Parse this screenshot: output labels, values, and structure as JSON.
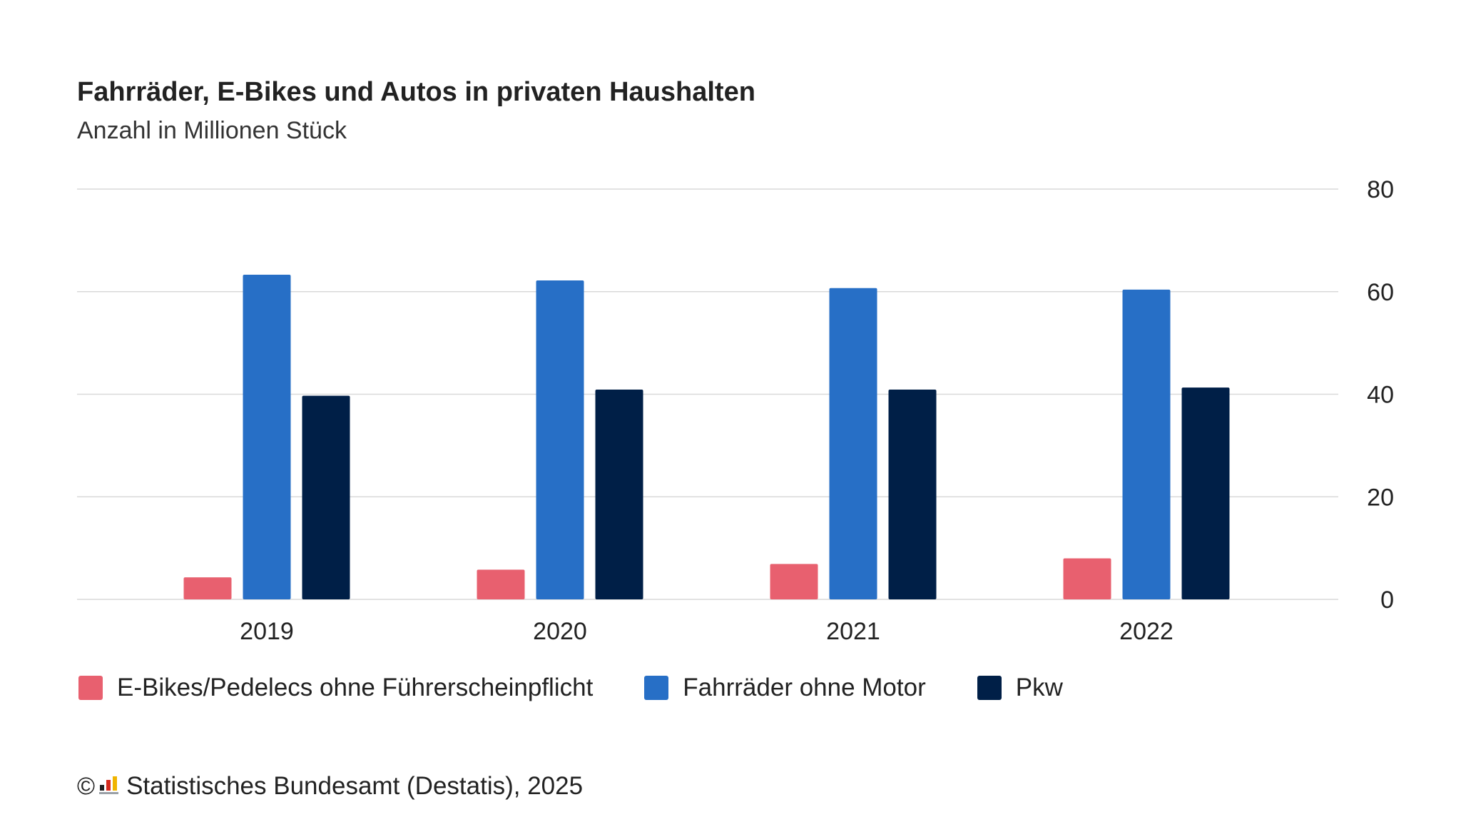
{
  "title": "Fahrräder, E-Bikes und Autos in privaten Haushalten",
  "subtitle": "Anzahl in Millionen Stück",
  "source": {
    "copyright_symbol": "©",
    "logo_icon": "destatis-logo-icon",
    "text": "Statistisches Bundesamt (Destatis), 2025"
  },
  "colors": {
    "ebikes": "#e8606f",
    "fahrraeder": "#276fc6",
    "pkw": "#001f47",
    "grid": "#d9d9d9"
  },
  "chart_data": {
    "type": "bar",
    "title": "Fahrräder, E-Bikes und Autos in privaten Haushalten",
    "subtitle": "Anzahl in Millionen Stück",
    "categories": [
      "2019",
      "2020",
      "2021",
      "2022"
    ],
    "series": [
      {
        "name": "E-Bikes/Pedelecs ohne Führerscheinpflicht",
        "color": "#e8606f",
        "values": [
          4.3,
          5.8,
          6.9,
          8.0
        ]
      },
      {
        "name": "Fahrräder ohne Motor",
        "color": "#276fc6",
        "values": [
          63.3,
          62.2,
          60.7,
          60.4
        ]
      },
      {
        "name": "Pkw",
        "color": "#001f47",
        "values": [
          39.7,
          40.9,
          40.9,
          41.3
        ]
      }
    ],
    "y_ticks": [
      "0",
      "20",
      "40",
      "60",
      "80"
    ],
    "ylim": [
      0,
      80
    ],
    "y_axis_position": "right",
    "grid": true,
    "legend_position": "bottom-left"
  }
}
